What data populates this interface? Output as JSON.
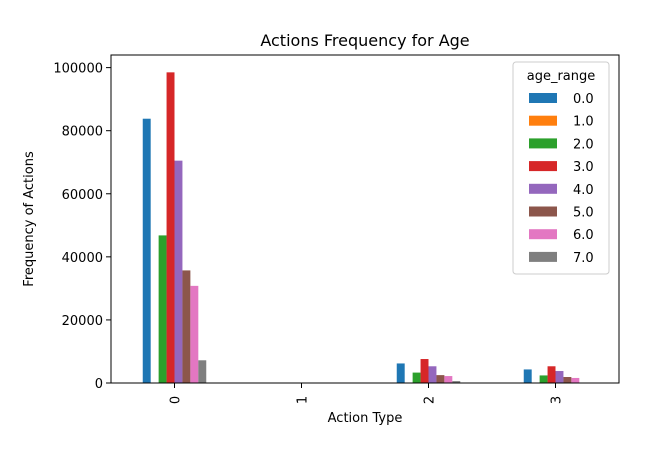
{
  "chart_data": {
    "type": "bar",
    "title": "Actions Frequency for Age",
    "xlabel": "Action Type",
    "ylabel": "Frequency of Actions",
    "categories": [
      "0",
      "1",
      "2",
      "3"
    ],
    "ylim": [
      0,
      104000
    ],
    "yticks": [
      0,
      20000,
      40000,
      60000,
      80000,
      100000
    ],
    "yticklabels": [
      "0",
      "20000",
      "40000",
      "60000",
      "80000",
      "100000"
    ],
    "grid": false,
    "legend": {
      "title": "age_range",
      "position": "top-right"
    },
    "series": [
      {
        "name": "0.0",
        "color": "#1f77b4",
        "values": [
          83800,
          0,
          6200,
          4300
        ]
      },
      {
        "name": "1.0",
        "color": "#ff7f0e",
        "values": [
          0,
          0,
          0,
          0
        ]
      },
      {
        "name": "2.0",
        "color": "#2ca02c",
        "values": [
          46800,
          0,
          3300,
          2400
        ]
      },
      {
        "name": "3.0",
        "color": "#d62728",
        "values": [
          98500,
          0,
          7600,
          5300
        ]
      },
      {
        "name": "4.0",
        "color": "#9467bd",
        "values": [
          70500,
          0,
          5300,
          3800
        ]
      },
      {
        "name": "5.0",
        "color": "#8c564b",
        "values": [
          35700,
          0,
          2500,
          1900
        ]
      },
      {
        "name": "6.0",
        "color": "#e377c2",
        "values": [
          30800,
          0,
          2200,
          1600
        ]
      },
      {
        "name": "7.0",
        "color": "#7f7f7f",
        "values": [
          7200,
          0,
          600,
          0
        ]
      }
    ]
  }
}
